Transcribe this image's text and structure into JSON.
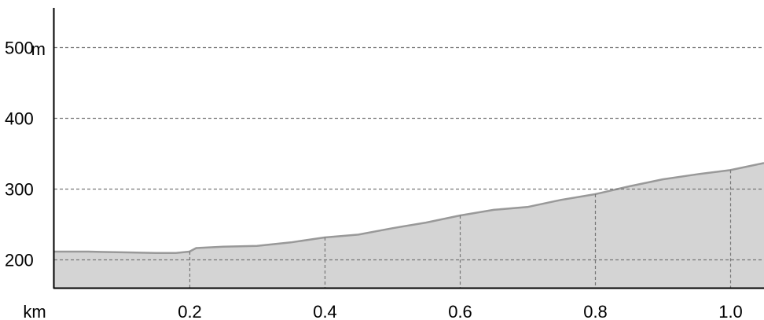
{
  "chart_data": {
    "type": "area",
    "xlabel": "km",
    "ylabel": "m",
    "xlim": [
      0,
      1.05
    ],
    "ylim": [
      160,
      555
    ],
    "x_ticks": [
      0.2,
      0.4,
      0.6,
      0.8,
      1.0
    ],
    "x_tick_labels": [
      "0.2",
      "0.4",
      "0.6",
      "0.8",
      "1.0"
    ],
    "y_ticks": [
      200,
      300,
      400,
      500
    ],
    "y_tick_labels": [
      "200",
      "300",
      "400",
      "500"
    ],
    "grid": "dashed",
    "colors": {
      "fill": "#d4d4d4",
      "line": "#999999",
      "grid": "#777777",
      "axis": "#000000"
    },
    "x": [
      0,
      0.05,
      0.1,
      0.15,
      0.18,
      0.2,
      0.21,
      0.25,
      0.3,
      0.35,
      0.4,
      0.45,
      0.5,
      0.55,
      0.6,
      0.65,
      0.7,
      0.75,
      0.8,
      0.85,
      0.9,
      0.95,
      1.0,
      1.05
    ],
    "values": [
      211,
      211,
      210,
      209,
      209,
      211,
      216,
      218,
      219,
      224,
      231,
      235,
      244,
      252,
      262,
      270,
      274,
      284,
      292,
      303,
      313,
      320,
      326,
      336
    ]
  }
}
